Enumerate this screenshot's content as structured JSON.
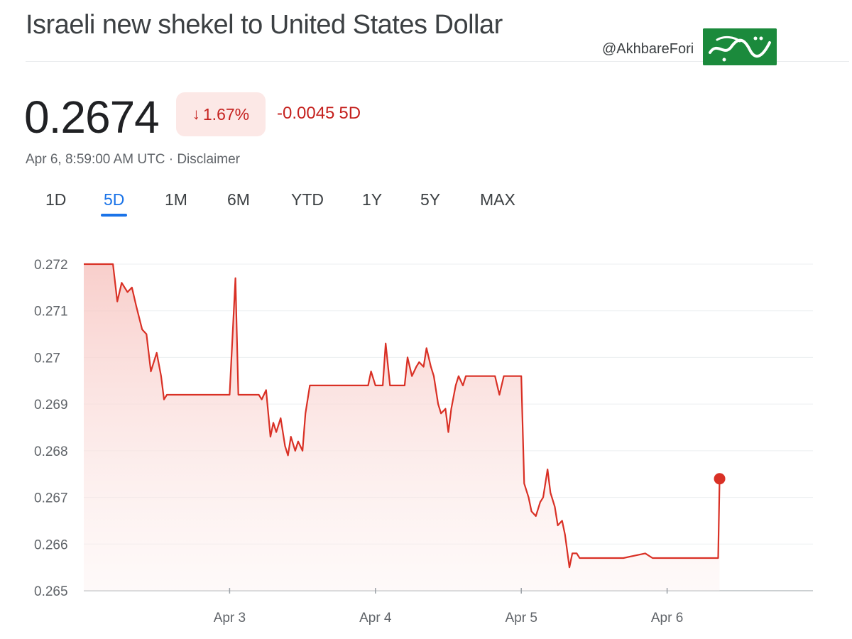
{
  "header": {
    "title": "Israeli new shekel to United States Dollar",
    "watermark_handle": "@AkhbareFori"
  },
  "quote": {
    "price": "0.2674",
    "change_arrow": "↓",
    "change_percent": "1.67%",
    "change_abs": "-0.0045",
    "change_period": "5D",
    "timestamp": "Apr 6, 8:59:00 AM UTC",
    "separator": " · ",
    "disclaimer": "Disclaimer"
  },
  "tabs": [
    {
      "label": "1D",
      "active": false
    },
    {
      "label": "5D",
      "active": true
    },
    {
      "label": "1M",
      "active": false
    },
    {
      "label": "6M",
      "active": false
    },
    {
      "label": "YTD",
      "active": false
    },
    {
      "label": "1Y",
      "active": false
    },
    {
      "label": "5Y",
      "active": false
    },
    {
      "label": "MAX",
      "active": false
    }
  ],
  "colors": {
    "line": "#d93025",
    "fill": "#fce8e6",
    "active_tab": "#1a73e8",
    "negative": "#c5221f",
    "logo_green": "#1b8a3c"
  },
  "chart_data": {
    "type": "area",
    "title": "",
    "xlabel": "",
    "ylabel": "",
    "ylim": [
      0.265,
      0.272
    ],
    "xlim": [
      2.0,
      7.0
    ],
    "yticks": [
      "0.272",
      "0.271",
      "0.27",
      "0.269",
      "0.268",
      "0.267",
      "0.266",
      "0.265"
    ],
    "ytick_values": [
      0.272,
      0.271,
      0.27,
      0.269,
      0.268,
      0.267,
      0.266,
      0.265
    ],
    "xticks": [
      "Apr 3",
      "Apr 4",
      "Apr 5",
      "Apr 6"
    ],
    "xtick_values": [
      3,
      4,
      5,
      6
    ],
    "grid": true,
    "last_point_marker": true,
    "series": [
      {
        "x": [
          2.0,
          2.2,
          2.23,
          2.26,
          2.3,
          2.33,
          2.36,
          2.4,
          2.43,
          2.46,
          2.5,
          2.53,
          2.55,
          2.57,
          2.6,
          2.63,
          2.65,
          2.7,
          2.75,
          3.0,
          3.04,
          3.06,
          3.08,
          3.1,
          3.2,
          3.22,
          3.25,
          3.28,
          3.3,
          3.32,
          3.35,
          3.38,
          3.4,
          3.42,
          3.45,
          3.47,
          3.5,
          3.52,
          3.55,
          3.58,
          3.6,
          3.65,
          3.95,
          3.97,
          4.0,
          4.02,
          4.05,
          4.07,
          4.1,
          4.2,
          4.22,
          4.25,
          4.28,
          4.3,
          4.33,
          4.35,
          4.38,
          4.4,
          4.43,
          4.45,
          4.48,
          4.5,
          4.52,
          4.55,
          4.57,
          4.6,
          4.62,
          4.65,
          4.8,
          4.82,
          4.85,
          4.88,
          4.9,
          4.95,
          5.0,
          5.02,
          5.05,
          5.07,
          5.1,
          5.13,
          5.15,
          5.18,
          5.2,
          5.23,
          5.25,
          5.28,
          5.3,
          5.33,
          5.35,
          5.38,
          5.4,
          5.45,
          5.5,
          5.7,
          5.85,
          5.9,
          6.0,
          6.1,
          6.2,
          6.35,
          6.36
        ],
        "values": [
          0.272,
          0.272,
          0.2712,
          0.2716,
          0.2714,
          0.2715,
          0.2711,
          0.2706,
          0.2705,
          0.2697,
          0.2701,
          0.2696,
          0.2691,
          0.2692,
          0.2692,
          0.2692,
          0.2692,
          0.2692,
          0.2692,
          0.2692,
          0.2717,
          0.2692,
          0.2692,
          0.2692,
          0.2692,
          0.2691,
          0.2693,
          0.2683,
          0.2686,
          0.2684,
          0.2687,
          0.2681,
          0.2679,
          0.2683,
          0.268,
          0.2682,
          0.268,
          0.2688,
          0.2694,
          0.2694,
          0.2694,
          0.2694,
          0.2694,
          0.2697,
          0.2694,
          0.2694,
          0.2694,
          0.2703,
          0.2694,
          0.2694,
          0.27,
          0.2696,
          0.2698,
          0.2699,
          0.2698,
          0.2702,
          0.2698,
          0.2696,
          0.269,
          0.2688,
          0.2689,
          0.2684,
          0.2689,
          0.2694,
          0.2696,
          0.2694,
          0.2696,
          0.2696,
          0.2696,
          0.2696,
          0.2692,
          0.2696,
          0.2696,
          0.2696,
          0.2696,
          0.2673,
          0.267,
          0.2667,
          0.2666,
          0.2669,
          0.267,
          0.2676,
          0.2671,
          0.2668,
          0.2664,
          0.2665,
          0.2662,
          0.2655,
          0.2658,
          0.2658,
          0.2657,
          0.2657,
          0.2657,
          0.2657,
          0.2658,
          0.2657,
          0.2657,
          0.2657,
          0.2657,
          0.2657,
          0.2674
        ]
      }
    ]
  }
}
